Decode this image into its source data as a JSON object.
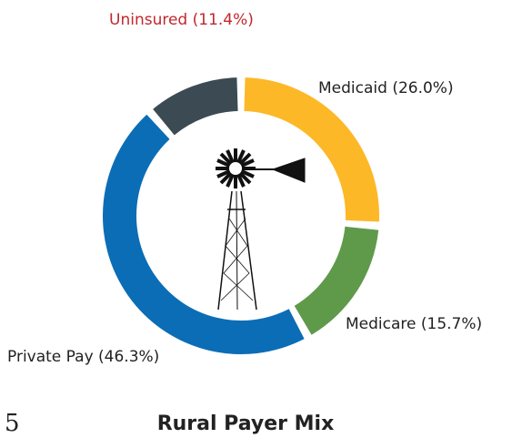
{
  "page_number": "5",
  "chart_data": {
    "type": "donut",
    "title": "Rural Payer Mix",
    "labels": [
      "Medicaid (26.0%)",
      "Medicare (15.7%)",
      "Private Pay (46.3%)",
      "Uninsured (11.4%)"
    ],
    "values": [
      26.0,
      15.7,
      46.3,
      11.4
    ],
    "colors": [
      "#fdb827",
      "#5f9a4b",
      "#0b6db6",
      "#3c4a53"
    ],
    "label_colors": [
      "#222222",
      "#222222",
      "#222222",
      "#c1272d"
    ]
  }
}
